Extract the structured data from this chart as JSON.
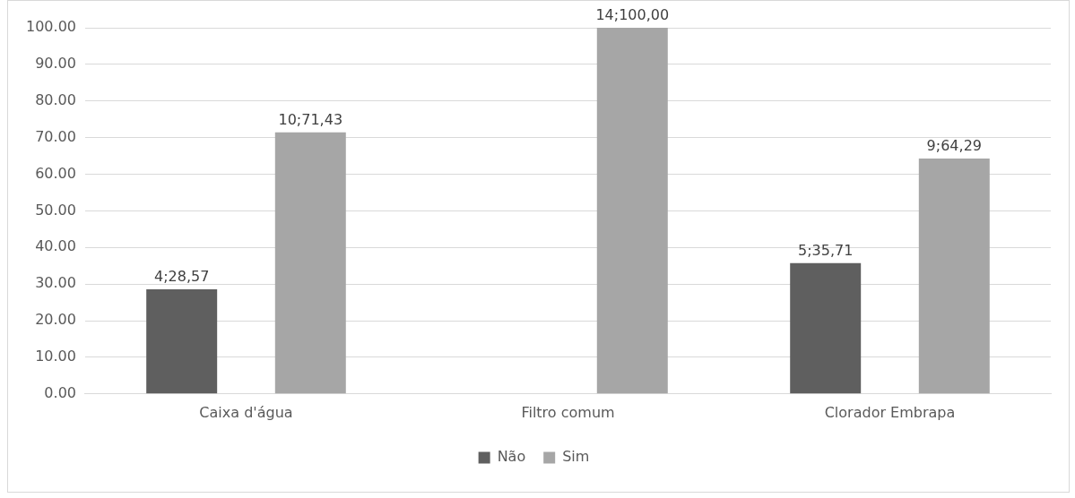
{
  "chart_data": {
    "type": "bar",
    "categories": [
      "Caixa d'água",
      "Filtro comum",
      "Clorador Embrapa"
    ],
    "series": [
      {
        "name": "Não",
        "color": "#5f5f5f",
        "values": [
          28.57,
          null,
          35.71
        ],
        "value_labels": [
          "4;28,57",
          null,
          "5;35,71"
        ]
      },
      {
        "name": "Sim",
        "color": "#a6a6a6",
        "values": [
          71.43,
          100,
          64.29
        ],
        "value_labels": [
          "10;71,43",
          "14;100,00",
          "9;64,29"
        ]
      }
    ],
    "ylim": [
      0,
      100
    ],
    "yticks": [
      {
        "value": 0,
        "label": "0.00"
      },
      {
        "value": 10,
        "label": "10.00"
      },
      {
        "value": 20,
        "label": "20.00"
      },
      {
        "value": 30,
        "label": "30.00"
      },
      {
        "value": 40,
        "label": "40.00"
      },
      {
        "value": 50,
        "label": "50.00"
      },
      {
        "value": 60,
        "label": "60.00"
      },
      {
        "value": 70,
        "label": "70.00"
      },
      {
        "value": 80,
        "label": "80.00"
      },
      {
        "value": 90,
        "label": "90.00"
      },
      {
        "value": 100,
        "label": "100.00"
      }
    ],
    "grid": "y",
    "legend": "bottom"
  }
}
